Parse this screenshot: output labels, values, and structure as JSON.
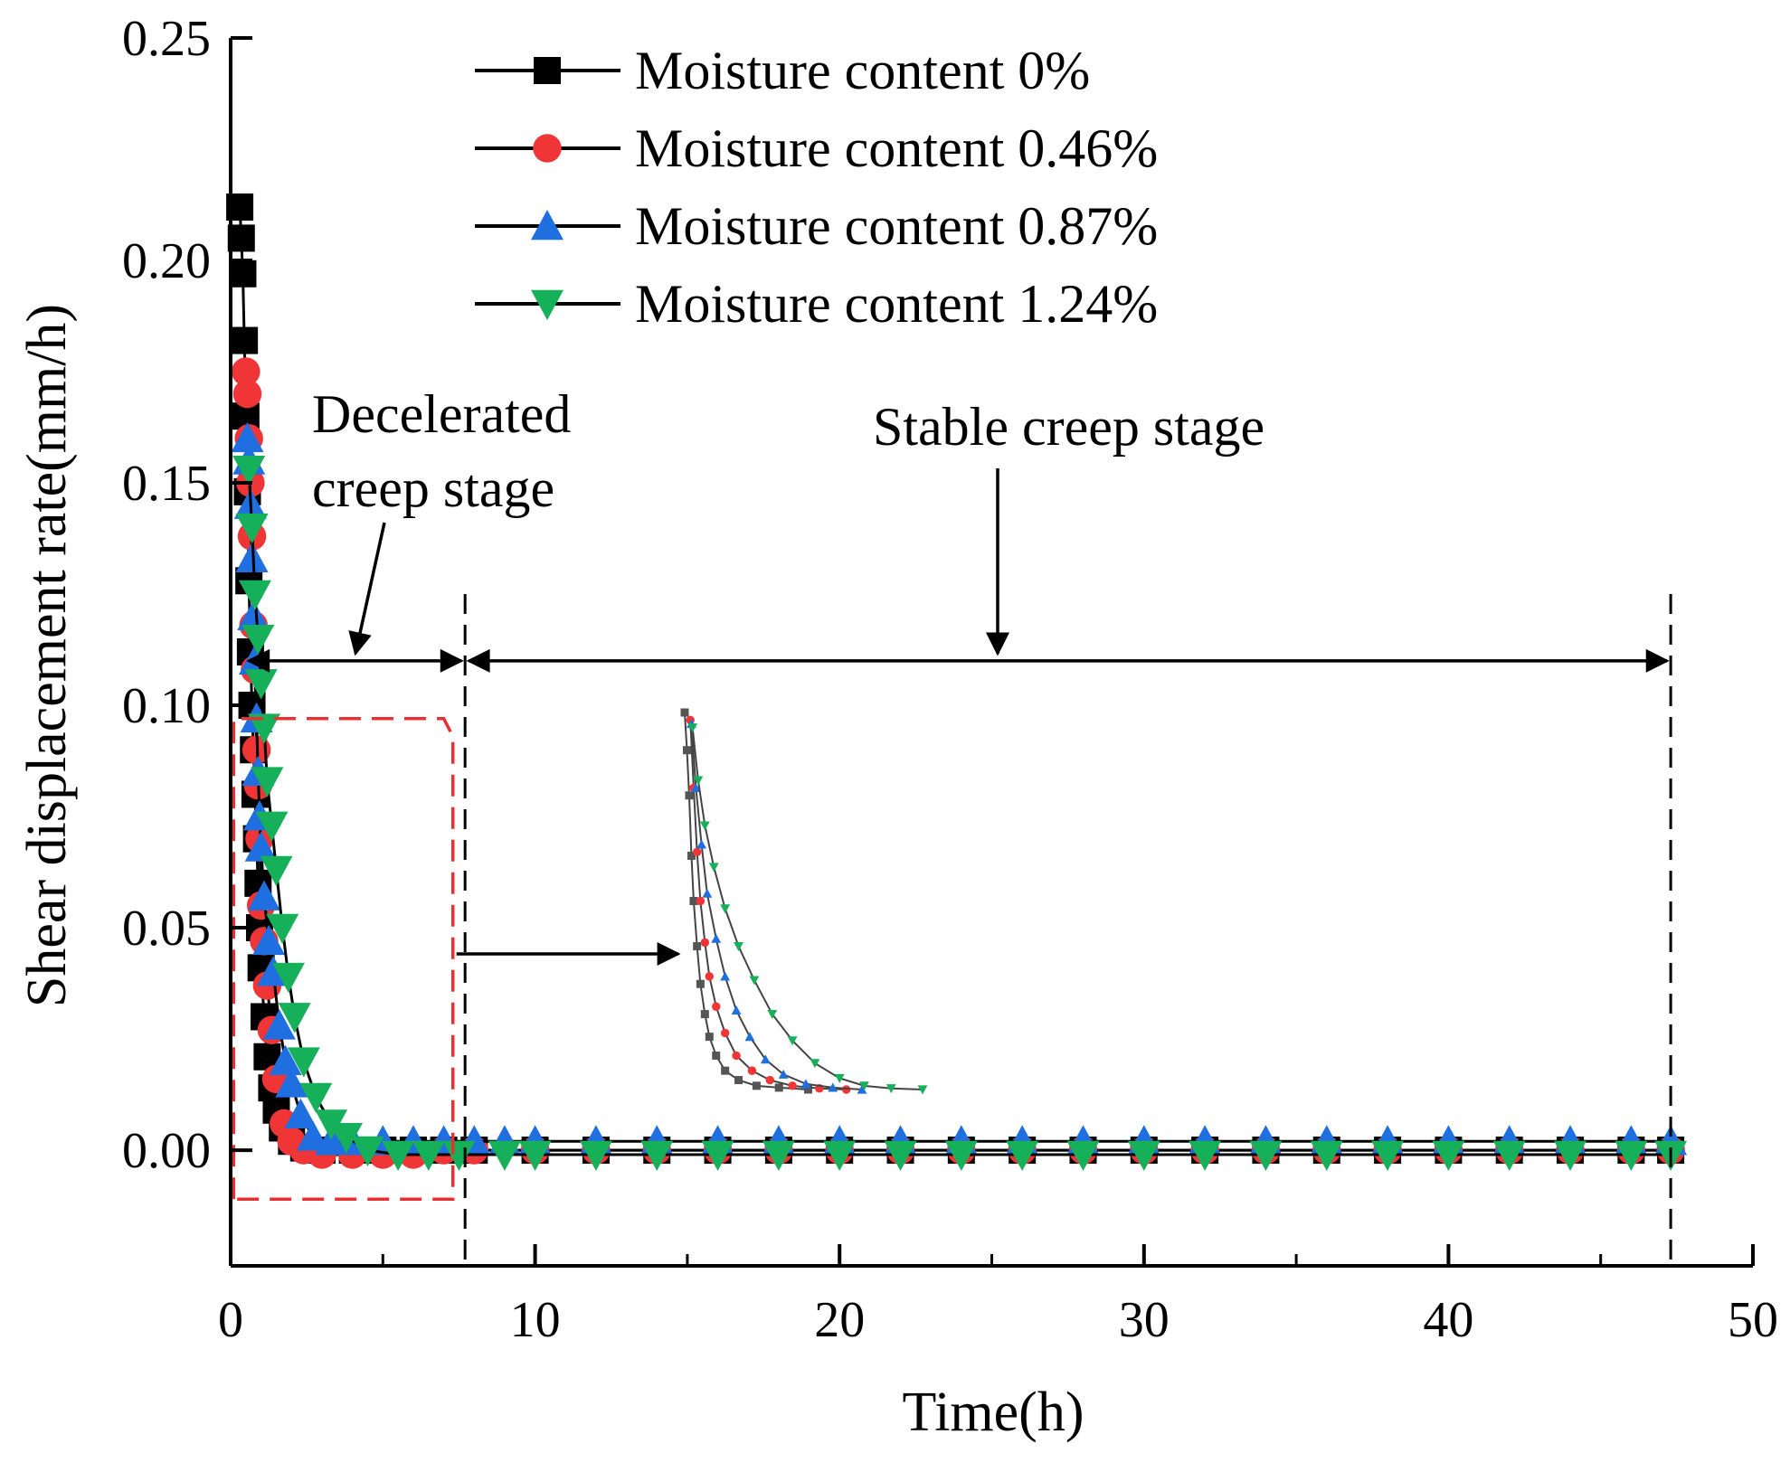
{
  "chart_data": {
    "type": "scatter",
    "xlabel": "Time(h)",
    "ylabel": "Shear displacement rate(mm/h)",
    "xlim": [
      0,
      50
    ],
    "ylim": [
      -0.026,
      0.25
    ],
    "xticks": [
      "0",
      "10",
      "20",
      "30",
      "40",
      "50"
    ],
    "yticks": [
      "0.00",
      "0.05",
      "0.10",
      "0.15",
      "0.20",
      "0.25"
    ],
    "legend_position": "top-center",
    "grid": false,
    "series": [
      {
        "name": "Moisture content 0%",
        "marker": "square",
        "color": "#000000",
        "x": [
          0.3,
          0.35,
          0.4,
          0.45,
          0.5,
          0.55,
          0.6,
          0.65,
          0.7,
          0.75,
          0.8,
          0.85,
          0.9,
          0.95,
          1.0,
          1.1,
          1.2,
          1.35,
          1.5,
          1.7,
          2.0,
          2.4,
          3.0,
          4.0,
          5.0,
          6.0,
          7.0,
          8.0,
          10,
          12,
          14,
          16,
          18,
          20,
          22,
          24,
          26,
          28,
          30,
          32,
          34,
          36,
          38,
          40,
          42,
          44,
          46,
          47.3
        ],
        "y": [
          0.212,
          0.205,
          0.197,
          0.182,
          0.165,
          0.148,
          0.128,
          0.112,
          0.1,
          0.09,
          0.08,
          0.07,
          0.06,
          0.05,
          0.041,
          0.03,
          0.021,
          0.014,
          0.009,
          0.005,
          0.002,
          0.0005,
          0.0,
          0.0,
          0.0,
          0.0,
          0.0,
          0.0,
          0.0,
          0.0,
          0.0,
          0.0,
          0.0,
          0.0,
          0.0,
          0.0,
          0.0,
          0.0,
          0.0,
          0.0,
          0.0,
          0.0,
          0.0,
          0.0,
          0.0,
          0.0,
          0.0,
          0.0
        ]
      },
      {
        "name": "Moisture content 0.46%",
        "marker": "circle",
        "color": "#ef3535",
        "x": [
          0.5,
          0.55,
          0.6,
          0.65,
          0.7,
          0.75,
          0.8,
          0.85,
          0.9,
          0.95,
          1.0,
          1.1,
          1.2,
          1.35,
          1.5,
          1.75,
          2.0,
          2.4,
          3.0,
          4.0,
          5.0,
          6.0,
          7.0,
          8.0,
          10,
          12,
          14,
          16,
          18,
          20,
          22,
          24,
          26,
          28,
          30,
          32,
          34,
          36,
          38,
          40,
          42,
          44,
          46,
          47.3
        ],
        "y": [
          0.175,
          0.17,
          0.16,
          0.15,
          0.138,
          0.118,
          0.108,
          0.09,
          0.082,
          0.07,
          0.055,
          0.047,
          0.037,
          0.027,
          0.016,
          0.006,
          0.002,
          0.0,
          -0.001,
          -0.001,
          -0.001,
          -0.001,
          0.0,
          0.0,
          0.0,
          0.0,
          0.0,
          0.0,
          0.0,
          0.0,
          0.0,
          0.0,
          0.0,
          0.0,
          0.0,
          0.0,
          0.0,
          0.0,
          0.0,
          0.0,
          0.0,
          0.0,
          0.0,
          0.0
        ]
      },
      {
        "name": "Moisture content 0.87%",
        "marker": "triangle-up",
        "color": "#1f6fe0",
        "x": [
          0.55,
          0.6,
          0.65,
          0.7,
          0.75,
          0.8,
          0.85,
          0.9,
          0.95,
          1.0,
          1.1,
          1.25,
          1.4,
          1.6,
          1.8,
          2.0,
          2.3,
          2.7,
          3.3,
          4.0,
          5.0,
          6.0,
          7.0,
          8.0,
          9.0,
          10,
          12,
          14,
          16,
          18,
          20,
          22,
          24,
          26,
          28,
          30,
          32,
          34,
          36,
          38,
          40,
          42,
          44,
          46,
          47.3
        ],
        "y": [
          0.16,
          0.155,
          0.145,
          0.133,
          0.12,
          0.11,
          0.097,
          0.085,
          0.075,
          0.068,
          0.057,
          0.047,
          0.04,
          0.028,
          0.02,
          0.015,
          0.008,
          0.003,
          0.002,
          0.002,
          0.002,
          0.002,
          0.002,
          0.002,
          0.002,
          0.002,
          0.002,
          0.002,
          0.002,
          0.002,
          0.002,
          0.002,
          0.002,
          0.002,
          0.002,
          0.002,
          0.002,
          0.002,
          0.002,
          0.002,
          0.002,
          0.002,
          0.002,
          0.002,
          0.002
        ]
      },
      {
        "name": "Moisture content 1.24%",
        "marker": "triangle-down",
        "color": "#16b05a",
        "x": [
          0.6,
          0.7,
          0.8,
          0.9,
          1.0,
          1.1,
          1.2,
          1.35,
          1.5,
          1.7,
          1.9,
          2.1,
          2.4,
          2.8,
          3.3,
          3.8,
          4.5,
          5.5,
          6.5,
          7.5,
          9.0,
          10,
          12,
          14,
          16,
          18,
          20,
          22,
          24,
          26,
          28,
          30,
          32,
          34,
          36,
          38,
          40,
          42,
          44,
          46,
          47.3
        ],
        "y": [
          0.153,
          0.14,
          0.125,
          0.115,
          0.105,
          0.095,
          0.083,
          0.073,
          0.063,
          0.05,
          0.039,
          0.03,
          0.02,
          0.012,
          0.006,
          0.003,
          0.0,
          -0.001,
          -0.001,
          -0.001,
          -0.001,
          -0.001,
          -0.001,
          -0.001,
          -0.001,
          -0.001,
          -0.001,
          -0.001,
          -0.001,
          -0.001,
          -0.001,
          -0.001,
          -0.001,
          -0.001,
          -0.001,
          -0.001,
          -0.001,
          -0.001,
          -0.001,
          -0.001,
          -0.001
        ]
      }
    ],
    "annotations": {
      "decelerated_line1": "Decelerated",
      "decelerated_line2": "creep stage",
      "stable": "Stable creep stage",
      "stage_boundaries_x": [
        0.35,
        7.7,
        47.3
      ]
    },
    "inset": {
      "series": [
        {
          "color": "#555555",
          "marker": "square",
          "x": [
            0,
            0.1,
            0.2,
            0.3,
            0.4,
            0.55,
            0.7,
            0.9,
            1.1,
            1.4,
            1.8,
            2.4,
            3.2,
            4.2,
            5.5
          ],
          "y": [
            1.0,
            0.9,
            0.78,
            0.62,
            0.5,
            0.38,
            0.28,
            0.2,
            0.14,
            0.09,
            0.05,
            0.025,
            0.01,
            0.005,
            0.0
          ]
        },
        {
          "color": "#ef3535",
          "marker": "circle",
          "x": [
            0.25,
            0.4,
            0.55,
            0.7,
            0.9,
            1.1,
            1.4,
            1.8,
            2.3,
            3.0,
            3.8,
            4.8,
            6.0,
            7.2
          ],
          "y": [
            0.98,
            0.8,
            0.63,
            0.5,
            0.39,
            0.3,
            0.22,
            0.15,
            0.09,
            0.05,
            0.025,
            0.01,
            0.003,
            0.0
          ]
        },
        {
          "color": "#1f6fe0",
          "marker": "triangle-up",
          "x": [
            0.3,
            0.5,
            0.75,
            1.0,
            1.4,
            1.8,
            2.3,
            2.9,
            3.6,
            4.4,
            5.4,
            6.6,
            7.9
          ],
          "y": [
            0.97,
            0.8,
            0.65,
            0.52,
            0.4,
            0.3,
            0.21,
            0.14,
            0.08,
            0.04,
            0.015,
            0.005,
            0.0
          ]
        },
        {
          "color": "#16b05a",
          "marker": "triangle-down",
          "x": [
            0.35,
            0.6,
            0.9,
            1.3,
            1.8,
            2.4,
            3.1,
            3.9,
            4.8,
            5.8,
            6.9,
            8.0,
            9.2,
            10.6
          ],
          "y": [
            0.96,
            0.82,
            0.7,
            0.59,
            0.48,
            0.38,
            0.29,
            0.2,
            0.13,
            0.07,
            0.03,
            0.01,
            0.003,
            0.0
          ]
        }
      ]
    }
  }
}
